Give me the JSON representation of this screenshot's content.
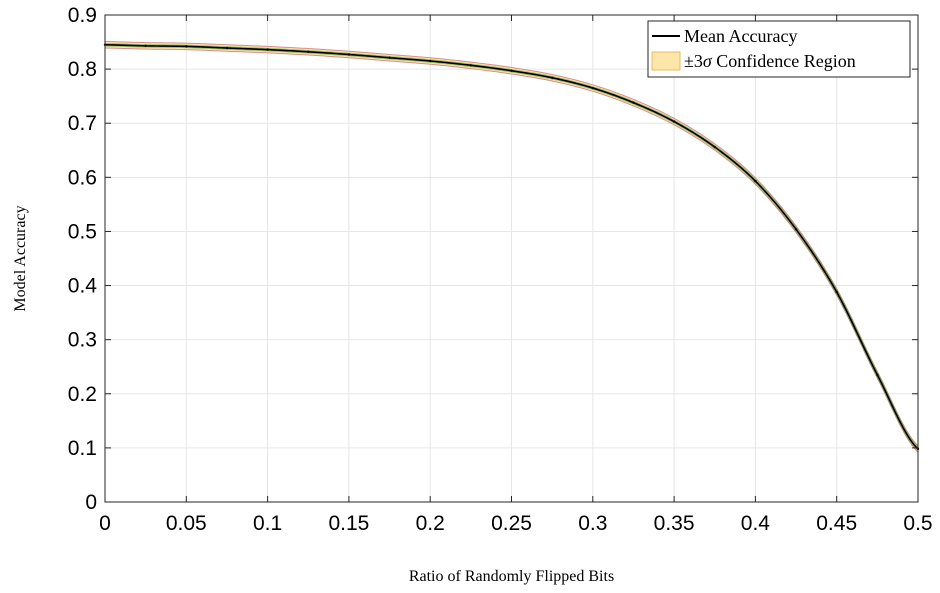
{
  "chart_data": {
    "type": "line",
    "title": "",
    "xlabel": "Ratio of Randomly Flipped Bits",
    "ylabel": "Model Accuracy",
    "xlim": [
      0,
      0.5
    ],
    "ylim": [
      0,
      0.9
    ],
    "grid": true,
    "legend_position": "top-right",
    "x_ticks": [
      "0",
      "0.05",
      "0.1",
      "0.15",
      "0.2",
      "0.25",
      "0.3",
      "0.35",
      "0.4",
      "0.45",
      "0.5"
    ],
    "y_ticks": [
      "0",
      "0.1",
      "0.2",
      "0.3",
      "0.4",
      "0.5",
      "0.6",
      "0.7",
      "0.8",
      "0.9"
    ],
    "legend": {
      "mean_label": "Mean Accuracy",
      "band_label_prefix": "±3",
      "band_label_symbol": "σ",
      "band_label_suffix": " Confidence Region"
    },
    "colors": {
      "mean_line": "#000000",
      "band_fill": "#fde6a8",
      "band_edge": "#d98c8c",
      "noise_marks": "#4c9a3a"
    },
    "series": [
      {
        "name": "Mean Accuracy",
        "x": [
          0,
          0.025,
          0.05,
          0.075,
          0.1,
          0.125,
          0.15,
          0.175,
          0.2,
          0.225,
          0.25,
          0.275,
          0.3,
          0.325,
          0.35,
          0.375,
          0.4,
          0.425,
          0.45,
          0.475,
          0.5
        ],
        "y": [
          0.845,
          0.843,
          0.842,
          0.839,
          0.836,
          0.832,
          0.827,
          0.821,
          0.815,
          0.807,
          0.797,
          0.784,
          0.765,
          0.738,
          0.703,
          0.656,
          0.593,
          0.504,
          0.388,
          0.235,
          0.098
        ],
        "band": 0.006
      }
    ]
  }
}
